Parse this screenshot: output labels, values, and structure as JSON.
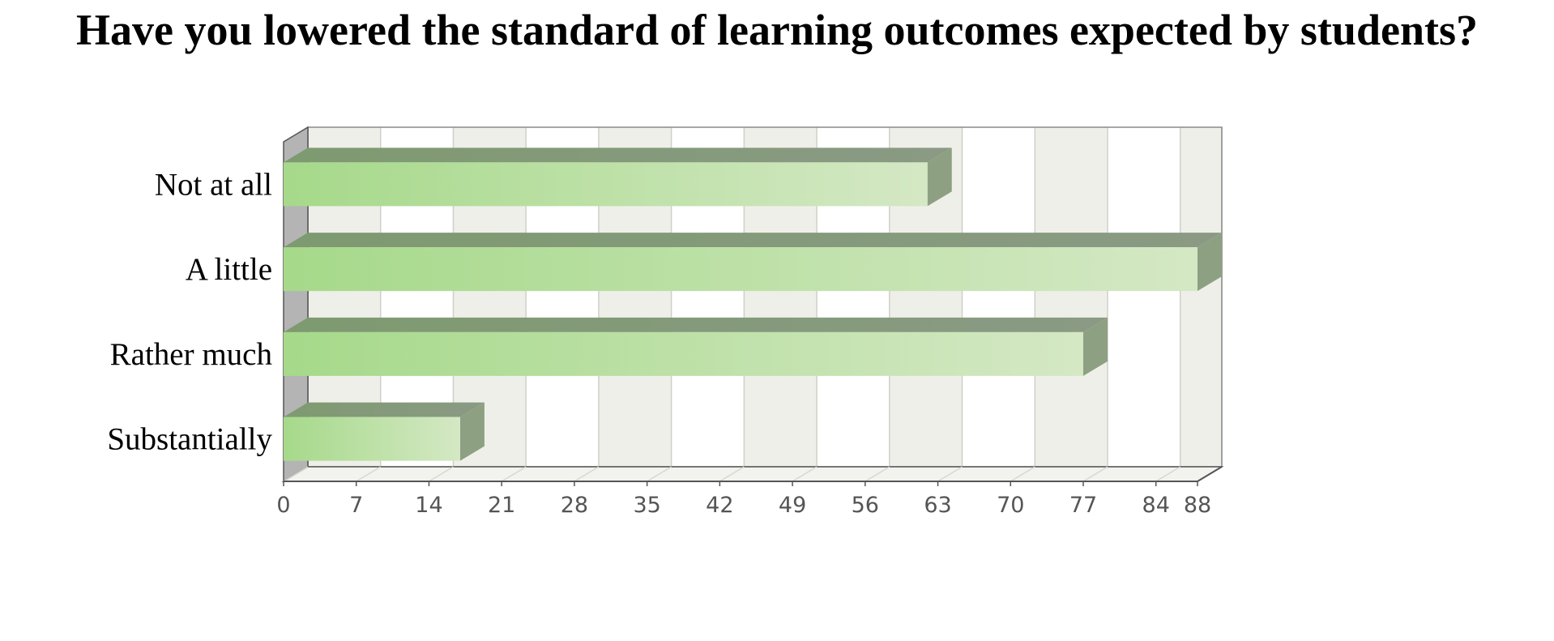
{
  "chart_data": {
    "type": "bar",
    "orientation": "horizontal",
    "title": "Have you lowered the standard of learning outcomes expected by students?",
    "categories": [
      "Not at all",
      "A little",
      "Rather much",
      "Substantially"
    ],
    "values": [
      62,
      88,
      77,
      17
    ],
    "xlim": [
      0,
      88
    ],
    "x_ticks": [
      "0",
      "7",
      "14",
      "21",
      "28",
      "35",
      "42",
      "49",
      "56",
      "63",
      "70",
      "77",
      "84",
      "88"
    ],
    "xlabel": "",
    "ylabel": "",
    "grid": true,
    "legend": "none",
    "style": "3d",
    "colors": {
      "bar_light": "#d4e8c4",
      "bar_dark": "#a6d98a",
      "bar_top": "#7e9a70",
      "bar_side": "#8ea082",
      "wall_band_a": "#efefe9",
      "wall_band_b": "#ffffff",
      "floor": "#f2f2ee",
      "left_wall": "#b4b4b4",
      "axis": "#555555"
    }
  }
}
